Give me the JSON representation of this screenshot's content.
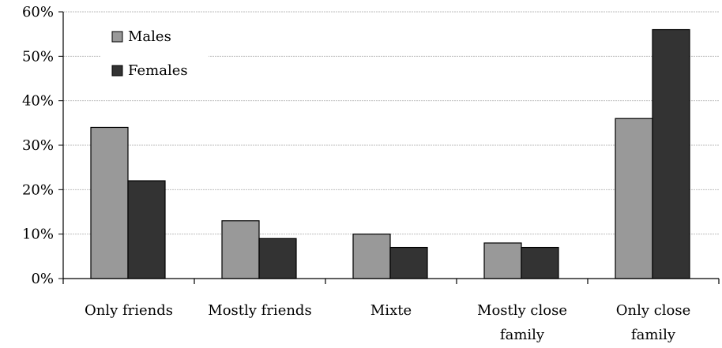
{
  "chart_data": {
    "type": "bar",
    "categories": [
      [
        "Only friends"
      ],
      [
        "Mostly friends"
      ],
      [
        "Mixte"
      ],
      [
        "Mostly close",
        "family"
      ],
      [
        "Only close",
        "family"
      ]
    ],
    "series": [
      {
        "name": "Males",
        "values": [
          34,
          13,
          10,
          8,
          36
        ],
        "color": "#999999"
      },
      {
        "name": "Females",
        "values": [
          22,
          9,
          7,
          7,
          56
        ],
        "color": "#333333"
      }
    ],
    "yticks": [
      "0%",
      "10%",
      "20%",
      "30%",
      "40%",
      "50%",
      "60%"
    ],
    "ylim": [
      0,
      60
    ],
    "grid": true,
    "legend": "top-left"
  }
}
